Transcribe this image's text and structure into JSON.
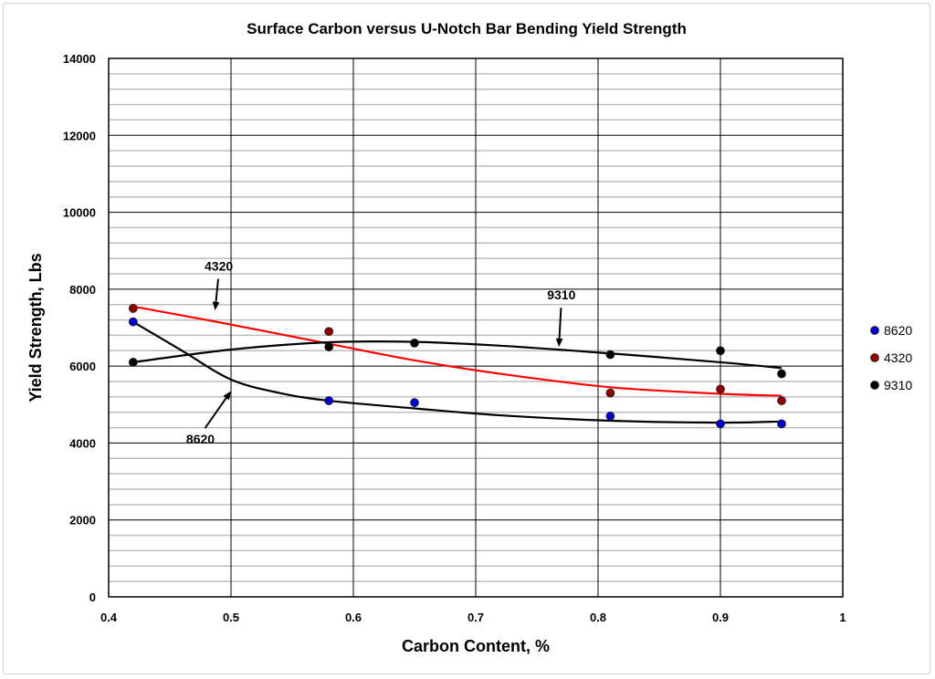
{
  "chart_data": {
    "type": "scatter",
    "title": "Surface Carbon versus U-Notch Bar Bending Yield Strength",
    "xlabel": "Carbon Content, %",
    "ylabel": "Yield Strength, Lbs",
    "xlim": [
      0.4,
      1.0
    ],
    "ylim": [
      0,
      14000
    ],
    "xticks": [
      "0.4",
      "0.5",
      "0.6",
      "0.7",
      "0.8",
      "0.9",
      "1"
    ],
    "yticks": [
      "0",
      "2000",
      "4000",
      "6000",
      "8000",
      "10000",
      "12000",
      "14000"
    ],
    "grid": true,
    "legend_position": "right",
    "series": [
      {
        "name": "8620",
        "color": "#0000cc",
        "line_color": "#000000",
        "x": [
          0.42,
          0.58,
          0.65,
          0.81,
          0.9,
          0.95
        ],
        "y": [
          7150,
          5100,
          5050,
          4700,
          4500,
          4500
        ],
        "trend_x": [
          0.42,
          0.46,
          0.5,
          0.54,
          0.58,
          0.65,
          0.72,
          0.81,
          0.9,
          0.95
        ],
        "trend_y": [
          7150,
          6400,
          5650,
          5300,
          5100,
          4900,
          4720,
          4580,
          4530,
          4560
        ]
      },
      {
        "name": "4320",
        "color": "#8b0000",
        "line_color": "#ff0000",
        "x": [
          0.42,
          0.58,
          0.81,
          0.9,
          0.95
        ],
        "y": [
          7500,
          6900,
          5300,
          5400,
          5100
        ],
        "trend_x": [
          0.42,
          0.5,
          0.58,
          0.65,
          0.72,
          0.81,
          0.9,
          0.95
        ],
        "trend_y": [
          7550,
          7080,
          6580,
          6150,
          5800,
          5450,
          5280,
          5230
        ]
      },
      {
        "name": "9310",
        "color": "#000000",
        "line_color": "#000000",
        "x": [
          0.42,
          0.58,
          0.65,
          0.81,
          0.9,
          0.95
        ],
        "y": [
          6100,
          6500,
          6600,
          6300,
          6400,
          5800
        ],
        "trend_x": [
          0.42,
          0.5,
          0.58,
          0.65,
          0.72,
          0.81,
          0.9,
          0.95
        ],
        "trend_y": [
          6100,
          6430,
          6620,
          6630,
          6530,
          6330,
          6100,
          5950
        ]
      }
    ],
    "annotations": [
      {
        "text": "4320",
        "label_x": 0.49,
        "label_y": 8600,
        "arrow_x": 0.487,
        "arrow_y": 7450
      },
      {
        "text": "9310",
        "label_x": 0.77,
        "label_y": 7850,
        "arrow_x": 0.768,
        "arrow_y": 6500
      },
      {
        "text": "8620",
        "label_x": 0.475,
        "label_y": 4100,
        "arrow_x": 0.5,
        "arrow_y": 5350
      }
    ]
  }
}
